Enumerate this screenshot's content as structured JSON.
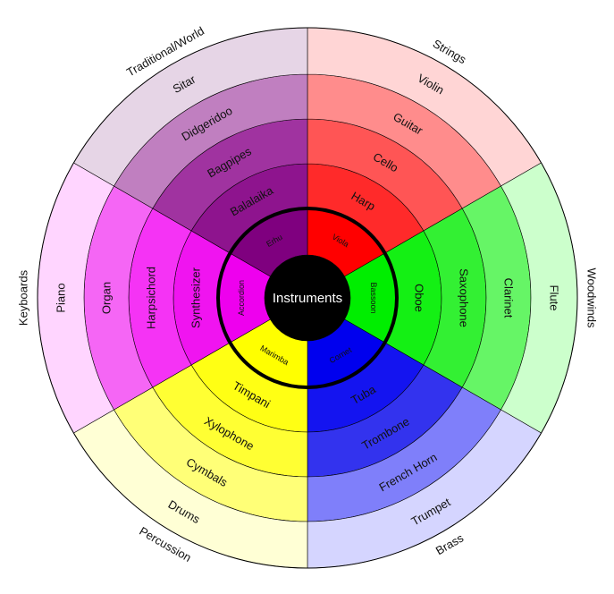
{
  "center_label": "Instruments",
  "categories": [
    {
      "name": "Strings",
      "colors": [
        "#ff0000",
        "#ff2a2a",
        "#ff5555",
        "#ff8c8c",
        "#ffd5d5"
      ],
      "items": [
        "Viola",
        "Harp",
        "Cello",
        "Guitar",
        "Violin"
      ]
    },
    {
      "name": "Woodwinds",
      "colors": [
        "#00ee00",
        "#14f014",
        "#33f033",
        "#66f566",
        "#ccffcc"
      ],
      "items": [
        "Bassoon",
        "Oboe",
        "Saxophone",
        "Clarinet",
        "Flute"
      ]
    },
    {
      "name": "Brass",
      "colors": [
        "#0000ee",
        "#1414f0",
        "#3333ee",
        "#7f7ffa",
        "#d5d5ff"
      ],
      "items": [
        "Cornet",
        "Tuba",
        "Trombone",
        "French Horn",
        "Trumpet"
      ]
    },
    {
      "name": "Percussion",
      "colors": [
        "#ffff00",
        "#ffff14",
        "#ffff33",
        "#ffff77",
        "#ffffd5"
      ],
      "items": [
        "Marimba",
        "Timpani",
        "Xylophone",
        "Cymbals",
        "Drums"
      ]
    },
    {
      "name": "Keyboards",
      "colors": [
        "#ee00ee",
        "#f014f0",
        "#f533f5",
        "#f566f5",
        "#ffd5ff"
      ],
      "items": [
        "Accordion",
        "Synthesizer",
        "Harpsichord",
        "Organ",
        "Piano"
      ]
    },
    {
      "name": "Traditional/World",
      "colors": [
        "#7f007f",
        "#8e148e",
        "#a033a0",
        "#c07fc0",
        "#e6d5e6"
      ],
      "items": [
        "Erhu",
        "Balalaika",
        "Bagpipes",
        "Didgeridoo",
        "Sitar"
      ]
    }
  ]
}
